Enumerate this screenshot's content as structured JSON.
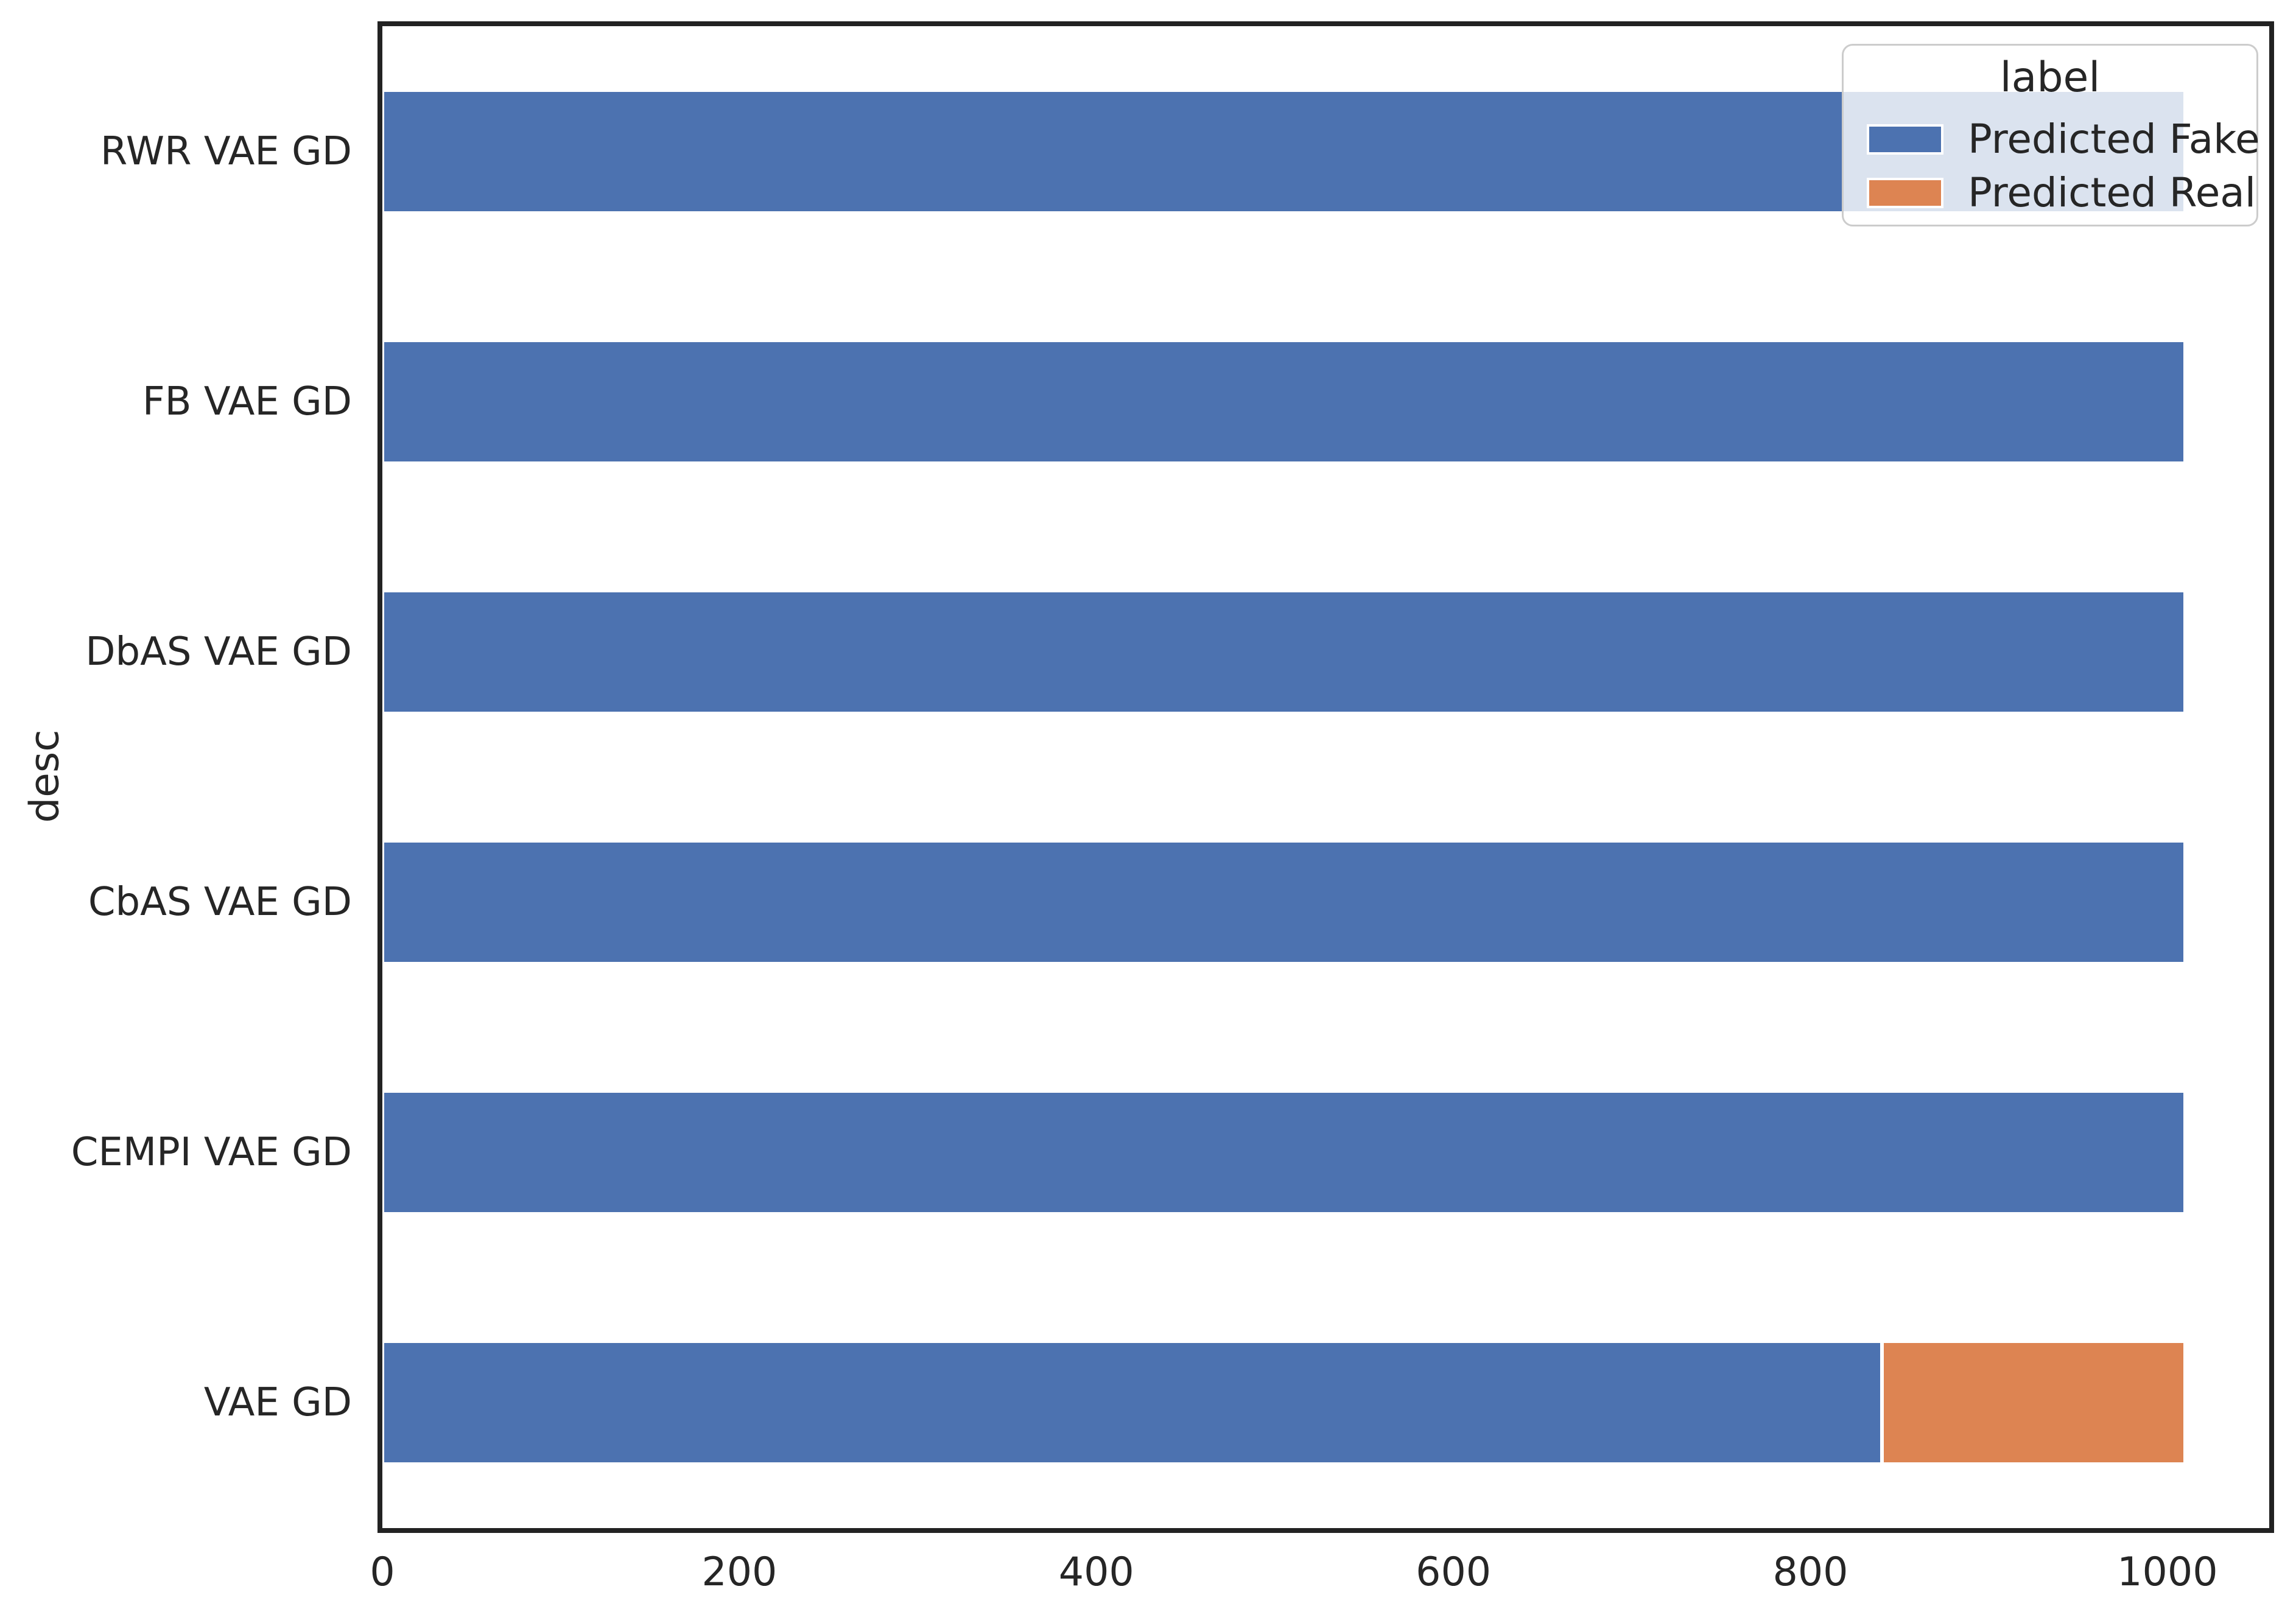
{
  "axes": {
    "ylabel": "desc",
    "xlabel": ""
  },
  "legend": {
    "title": "label",
    "entries": [
      {
        "label": "Predicted Fake",
        "color": "#4C72B0"
      },
      {
        "label": "Predicted Real",
        "color": "#DD8452"
      }
    ]
  },
  "chart_data": {
    "type": "bar",
    "orientation": "horizontal",
    "stacked": true,
    "title": "",
    "xlabel": "",
    "ylabel": "desc",
    "categories": [
      "RWR VAE GD",
      "FB VAE GD",
      "DbAS VAE GD",
      "CbAS VAE GD",
      "CEMPI VAE GD",
      "VAE GD"
    ],
    "series": [
      {
        "name": "Predicted Fake",
        "color": "#4C72B0",
        "values": [
          1010,
          1010,
          1010,
          1010,
          1010,
          840
        ]
      },
      {
        "name": "Predicted Real",
        "color": "#DD8452",
        "values": [
          0,
          0,
          0,
          0,
          0,
          170
        ]
      }
    ],
    "x_ticks": [
      0,
      200,
      400,
      600,
      800,
      1000
    ],
    "xlim": [
      0,
      1057
    ],
    "grid": false,
    "legend_position": "upper right",
    "legend_title": "label"
  }
}
